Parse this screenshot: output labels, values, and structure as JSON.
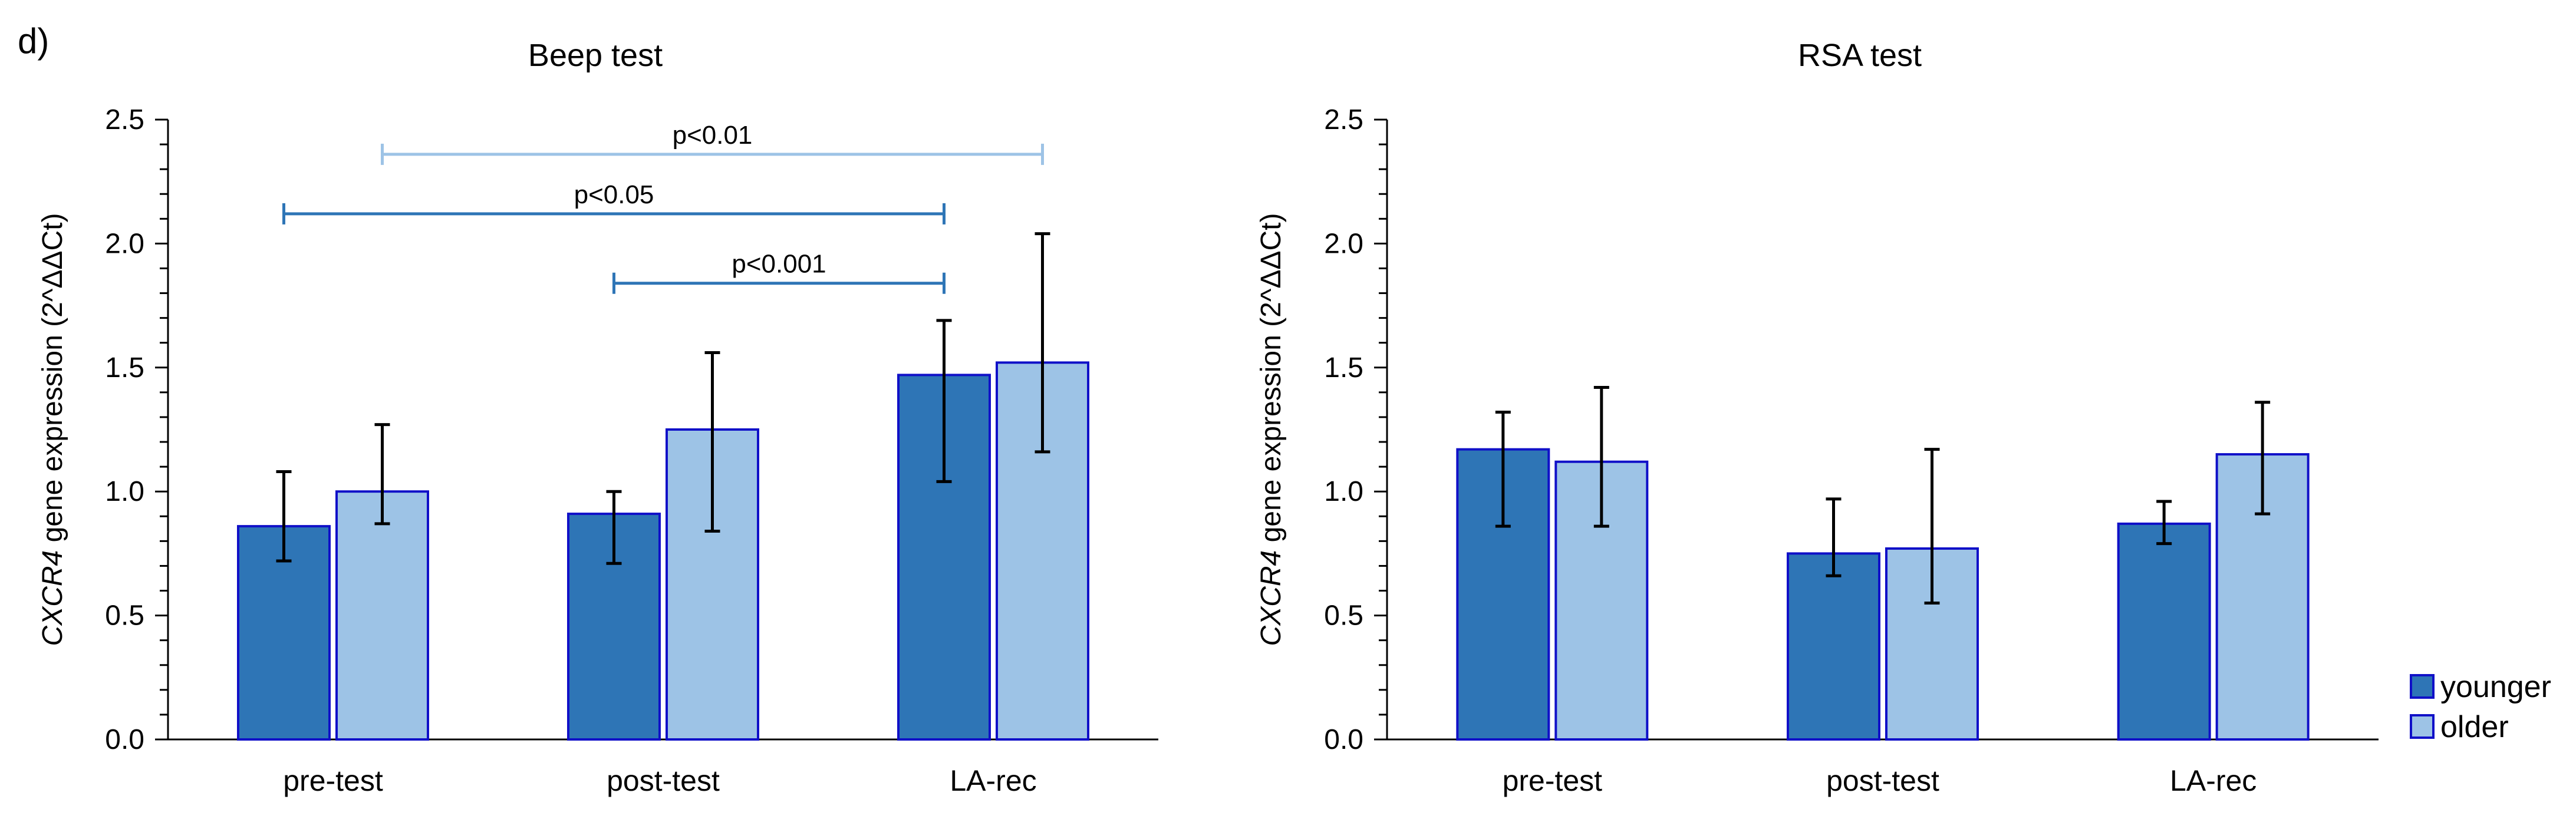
{
  "panel_letter": "d)",
  "colors": {
    "younger_fill": "#2E75B6",
    "older_fill": "#9DC3E6",
    "bar_edge": "#1010C8",
    "axis": "#000000",
    "sig_younger": "#2E75B6",
    "sig_older": "#9DC3E6"
  },
  "chart_data": [
    {
      "type": "bar",
      "title": "Beep test",
      "ylabel_italic": "CXCR4",
      "ylabel_rest": " gene expression (2^ΔΔCt)",
      "ylim": [
        0,
        2.5
      ],
      "yticks": [
        "0.0",
        "0.5",
        "1.0",
        "1.5",
        "2.0",
        "2.5"
      ],
      "grid": false,
      "categories": [
        "pre-test",
        "post-test",
        "LA-rec"
      ],
      "series": [
        {
          "name": "younger",
          "values": [
            0.86,
            0.91,
            1.47
          ],
          "err_low": [
            0.72,
            0.71,
            1.04
          ],
          "err_high": [
            1.08,
            1.0,
            1.69
          ]
        },
        {
          "name": "older",
          "values": [
            1.0,
            1.25,
            1.52
          ],
          "err_low": [
            0.87,
            0.84,
            1.16
          ],
          "err_high": [
            1.27,
            1.56,
            2.04
          ]
        }
      ],
      "annotations": [
        {
          "label": "p<0.01",
          "y": 2.36,
          "from": [
            0,
            1
          ],
          "to": [
            2,
            1
          ]
        },
        {
          "label": "p<0.05",
          "y": 2.12,
          "from": [
            0,
            0
          ],
          "to": [
            2,
            0
          ]
        },
        {
          "label": "p<0.001",
          "y": 1.84,
          "from": [
            1,
            0
          ],
          "to": [
            2,
            0
          ]
        }
      ]
    },
    {
      "type": "bar",
      "title": "RSA test",
      "ylabel_italic": "CXCR4",
      "ylabel_rest": " gene expression (2^ΔΔCt)",
      "ylim": [
        0,
        2.5
      ],
      "yticks": [
        "0.0",
        "0.5",
        "1.0",
        "1.5",
        "2.0",
        "2.5"
      ],
      "grid": false,
      "categories": [
        "pre-test",
        "post-test",
        "LA-rec"
      ],
      "series": [
        {
          "name": "younger",
          "values": [
            1.17,
            0.75,
            0.87
          ],
          "err_low": [
            0.86,
            0.66,
            0.79
          ],
          "err_high": [
            1.32,
            0.97,
            0.96
          ]
        },
        {
          "name": "older",
          "values": [
            1.12,
            0.77,
            1.15
          ],
          "err_low": [
            0.86,
            0.55,
            0.91
          ],
          "err_high": [
            1.42,
            1.17,
            1.36
          ]
        }
      ],
      "annotations": []
    }
  ],
  "legend": {
    "placement": "bottom-right",
    "items": [
      {
        "label": "younger",
        "color": "#2E75B6"
      },
      {
        "label": "older",
        "color": "#9DC3E6"
      }
    ]
  }
}
